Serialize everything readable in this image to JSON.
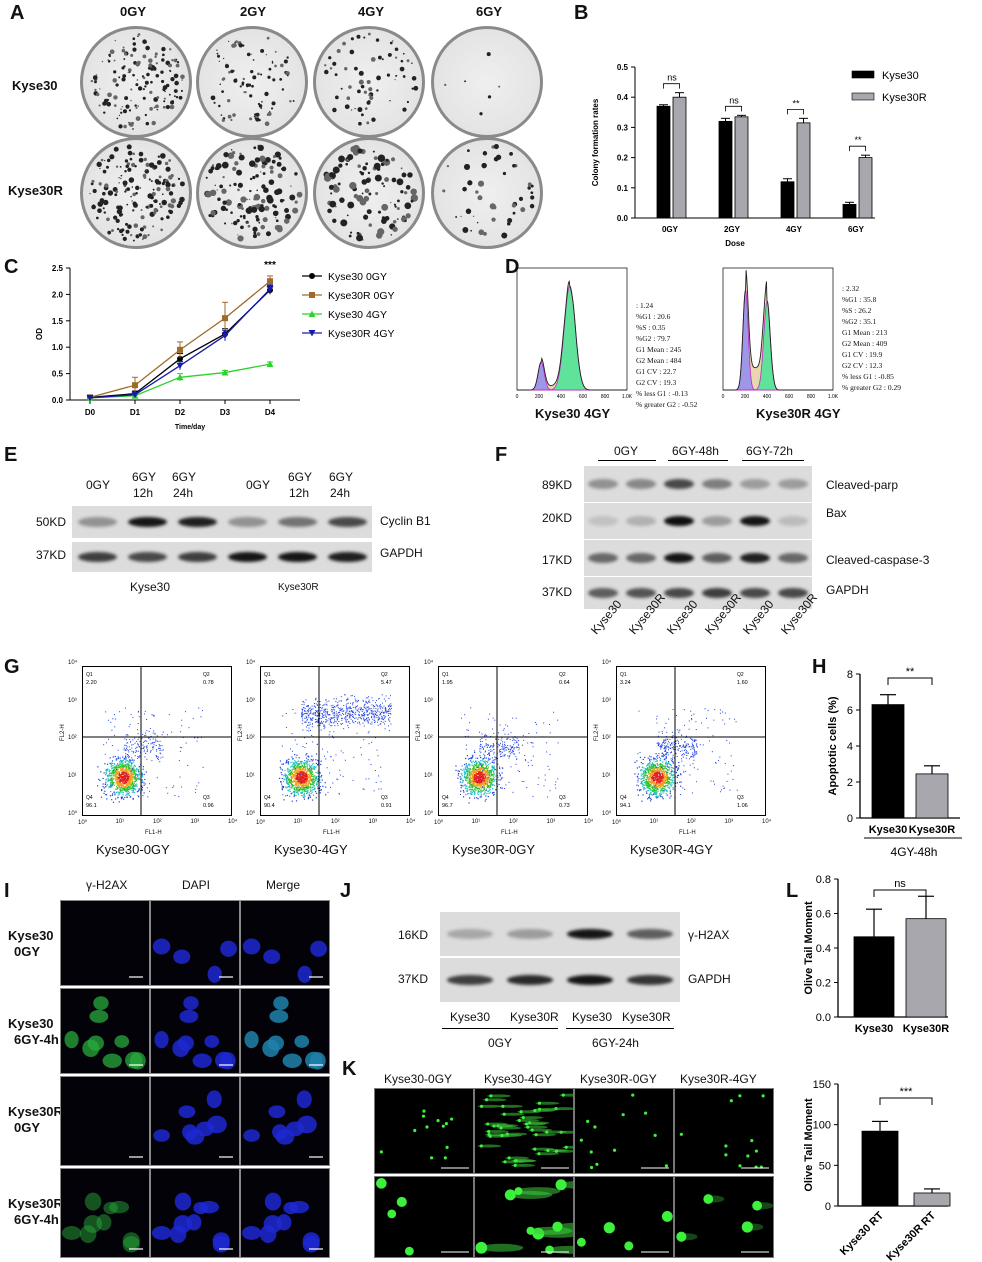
{
  "panels": {
    "A": "A",
    "B": "B",
    "C": "C",
    "D": "D",
    "E": "E",
    "F": "F",
    "G": "G",
    "H": "H",
    "I": "I",
    "J": "J",
    "K": "K",
    "L": "L"
  },
  "panelA": {
    "doses": [
      "0GY",
      "2GY",
      "4GY",
      "6GY"
    ],
    "rows": [
      "Kyse30",
      "Kyse30R"
    ]
  },
  "panelB": {
    "legend": [
      "Kyse30",
      "Kyse30R"
    ],
    "ylabel": "Colony formation rates",
    "xlabel": "Dose",
    "sig": [
      "ns",
      "ns",
      "**",
      "**"
    ]
  },
  "panelC": {
    "legend": [
      "Kyse30 0GY",
      "Kyse30R 0GY",
      "Kyse30 4GY",
      "Kyse30R 4GY"
    ],
    "ylabel": "OD",
    "xlabel": "Time/day",
    "sig": "***"
  },
  "panelD": {
    "left": {
      "title": "Kyse30  4GY",
      "stats": [
        ": 1.24",
        "%G1 : 20.6",
        "%S : 0.35",
        "%G2 : 79.7",
        "G1 Mean : 245",
        "G2 Mean : 484",
        "G1 CV : 22.7",
        "G2 CV : 19.3",
        "% less G1 : -0.13",
        "% greater G2 : -0.52"
      ]
    },
    "right": {
      "title": "Kyse30R  4GY",
      "stats": [
        ": 2.32",
        "%G1 : 35.8",
        "%S : 26.2",
        "%G2 : 35.1",
        "G1 Mean : 213",
        "G2 Mean : 409",
        "G1 CV : 19.9",
        "G2 CV : 12.3",
        "% less G1 : -0.85",
        "% greater G2 : 0.29"
      ]
    },
    "xticks": [
      "0",
      "200",
      "400",
      "600",
      "800",
      "1.0K"
    ]
  },
  "panelE": {
    "cols": [
      "0GY",
      "6GY\n12h",
      "6GY\n24h",
      "0GY",
      "6GY\n12h",
      "6GY\n24h"
    ],
    "col_top": [
      "0GY",
      "6GY",
      "6GY",
      "0GY",
      "6GY",
      "6GY"
    ],
    "col_bot": [
      "",
      "12h",
      "24h",
      "",
      "12h",
      "24h"
    ],
    "kd": [
      "50KD",
      "37KD"
    ],
    "proteins": [
      "Cyclin B1",
      "GAPDH"
    ],
    "groups": [
      "Kyse30",
      "Kyse30R"
    ]
  },
  "panelF": {
    "groups": [
      "0GY",
      "6GY-48h",
      "6GY-72h"
    ],
    "kd": [
      "89KD",
      "20KD",
      "17KD",
      "37KD"
    ],
    "proteins": [
      "Cleaved-parp",
      "Bax",
      "Cleaved-caspase-3",
      "GAPDH"
    ],
    "lanes": [
      "Kyse30",
      "Kyse30R",
      "Kyse30",
      "Kyse30R",
      "Kyse30",
      "Kyse30R"
    ]
  },
  "panelG": {
    "plots": [
      {
        "title": "Kyse30-0GY",
        "q1": "2.20",
        "q2": "0.78",
        "q3": "0.96",
        "q4": "96.1"
      },
      {
        "title": "Kyse30-4GY",
        "q1": "3.20",
        "q2": "5.47",
        "q3": "0.91",
        "q4": "90.4"
      },
      {
        "title": "Kyse30R-0GY",
        "q1": "1.95",
        "q2": "0.64",
        "q3": "0.73",
        "q4": "96.7"
      },
      {
        "title": "Kyse30R-4GY",
        "q1": "3.24",
        "q2": "1.60",
        "q3": "1.06",
        "q4": "94.1"
      }
    ],
    "xlabel": "FL1-H",
    "ylabel": "FL2-H",
    "qnames": [
      "Q1",
      "Q2",
      "Q3",
      "Q4"
    ]
  },
  "panelH": {
    "ylabel": "Apoptotic cells (%)",
    "group": "4GY-48h",
    "sig": "**"
  },
  "panelI": {
    "cols": [
      "γ-H2AX",
      "DAPI",
      "Merge"
    ],
    "rows": [
      "Kyse30\n0GY",
      "Kyse30\n6GY-4h",
      "Kyse30R\n0GY",
      "Kyse30R\n6GY-4h"
    ],
    "row_a": [
      "Kyse30",
      "Kyse30",
      "Kyse30R",
      "Kyse30R"
    ],
    "row_b": [
      "0GY",
      "6GY-4h",
      "0GY",
      "6GY-4h"
    ]
  },
  "panelJ": {
    "kd": [
      "16KD",
      "37KD"
    ],
    "proteins": [
      "γ-H2AX",
      "GAPDH"
    ],
    "lanes": [
      "Kyse30",
      "Kyse30R",
      "Kyse30",
      "Kyse30R"
    ],
    "groups": [
      "0GY",
      "6GY-24h"
    ]
  },
  "panelK": {
    "cols": [
      "Kyse30-0GY",
      "Kyse30-4GY",
      "Kyse30R-0GY",
      "Kyse30R-4GY"
    ]
  },
  "panelL": {
    "ylabel": "Olive Tail Moment",
    "sig_top": "ns",
    "sig_bot": "***"
  },
  "chart_data": [
    {
      "type": "bar",
      "panel": "B",
      "categories": [
        "0GY",
        "2GY",
        "4GY",
        "6GY"
      ],
      "series": [
        {
          "name": "Kyse30",
          "values": [
            0.37,
            0.32,
            0.12,
            0.045
          ],
          "errors": [
            0.005,
            0.01,
            0.01,
            0.007
          ],
          "color": "#000000"
        },
        {
          "name": "Kyse30R",
          "values": [
            0.4,
            0.335,
            0.315,
            0.2
          ],
          "errors": [
            0.015,
            0.005,
            0.015,
            0.008
          ],
          "color": "#a7a7ad"
        }
      ],
      "xlabel": "Dose",
      "ylabel": "Colony formation rates",
      "ylim": [
        0,
        0.5
      ],
      "yticks": [
        "0.0",
        "0.1",
        "0.2",
        "0.3",
        "0.4",
        "0.5"
      ],
      "legend": "top-right"
    },
    {
      "type": "line",
      "panel": "C",
      "x": [
        "D0",
        "D1",
        "D2",
        "D3",
        "D4"
      ],
      "series": [
        {
          "name": "Kyse30 0GY",
          "values": [
            0.05,
            0.12,
            0.78,
            1.25,
            2.08
          ],
          "errors": [
            0.02,
            0.05,
            0.1,
            0.1,
            0.08
          ],
          "color": "#000000",
          "marker": "circle"
        },
        {
          "name": "Kyse30R 0GY",
          "values": [
            0.05,
            0.28,
            0.95,
            1.55,
            2.25
          ],
          "errors": [
            0.02,
            0.15,
            0.15,
            0.3,
            0.1
          ],
          "color": "#a06a2a",
          "marker": "square"
        },
        {
          "name": "Kyse30 4GY",
          "values": [
            0.04,
            0.08,
            0.43,
            0.52,
            0.68
          ],
          "errors": [
            0.02,
            0.03,
            0.07,
            0.04,
            0.04
          ],
          "color": "#2ed12e",
          "marker": "triangle-up"
        },
        {
          "name": "Kyse30R 4GY",
          "values": [
            0.04,
            0.1,
            0.65,
            1.22,
            2.1
          ],
          "errors": [
            0.02,
            0.03,
            0.08,
            0.1,
            0.08
          ],
          "color": "#1a1aa8",
          "marker": "triangle-down"
        }
      ],
      "xlabel": "Time/day",
      "ylabel": "OD",
      "ylim": [
        0,
        2.5
      ],
      "yticks": [
        "0.0",
        "0.5",
        "1.0",
        "1.5",
        "2.0",
        "2.5"
      ],
      "legend": "right"
    },
    {
      "type": "bar",
      "panel": "H",
      "categories": [
        "Kyse30",
        "Kyse30R"
      ],
      "values": [
        6.3,
        2.45
      ],
      "errors": [
        0.55,
        0.45
      ],
      "colors": [
        "#000000",
        "#a7a7ad"
      ],
      "ylabel": "Apoptotic cells (%)",
      "ylim": [
        0,
        8
      ],
      "yticks": [
        "0",
        "2",
        "4",
        "6",
        "8"
      ]
    },
    {
      "type": "bar",
      "panel": "L-top",
      "categories": [
        "Kyse30",
        "Kyse30R"
      ],
      "values": [
        0.465,
        0.57
      ],
      "errors": [
        0.16,
        0.13
      ],
      "colors": [
        "#000000",
        "#a7a7ad"
      ],
      "ylabel": "Olive Tail Moment",
      "ylim": [
        0,
        0.8
      ],
      "yticks": [
        "0.0",
        "0.2",
        "0.4",
        "0.6",
        "0.8"
      ]
    },
    {
      "type": "bar",
      "panel": "L-bottom",
      "categories": [
        "Kyse30 RT",
        "Kyse30R RT"
      ],
      "values": [
        92,
        16
      ],
      "errors": [
        12,
        5
      ],
      "colors": [
        "#000000",
        "#a7a7ad"
      ],
      "ylabel": "Olive Tail Moment",
      "ylim": [
        0,
        150
      ],
      "yticks": [
        "0",
        "50",
        "100",
        "150"
      ]
    }
  ]
}
